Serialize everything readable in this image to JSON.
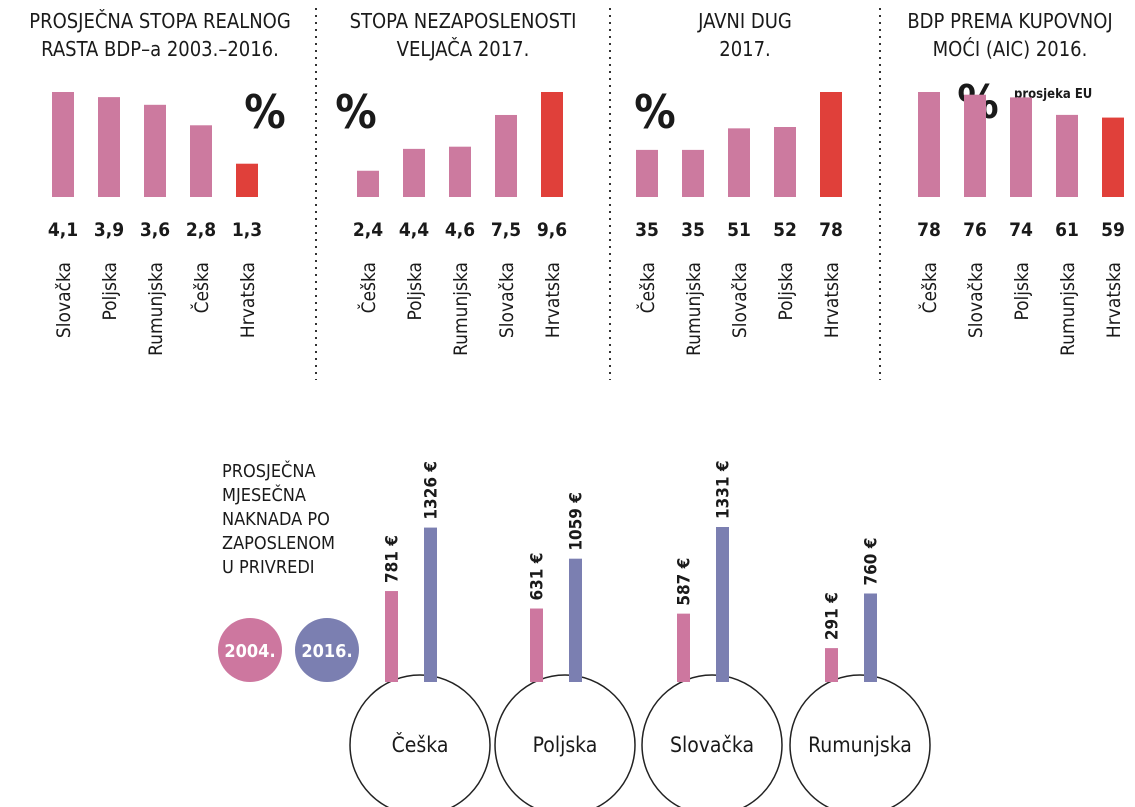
{
  "chart_data": [
    {
      "type": "bar",
      "title": [
        "PROSJEČNA STOPA REALNOG",
        "RASTA BDP–a 2003.–2016."
      ],
      "unit": "%",
      "categories": [
        "Slovačka",
        "Poljska",
        "Rumunjska",
        "Češka",
        "Hrvatska"
      ],
      "values": [
        4.1,
        3.9,
        3.6,
        2.8,
        1.3
      ],
      "value_labels": [
        "4,1",
        "3,9",
        "3,6",
        "2,8",
        "1,3"
      ],
      "colors": [
        "#cc7a9f",
        "#cc7a9f",
        "#cc7a9f",
        "#cc7a9f",
        "#e0403a"
      ]
    },
    {
      "type": "bar",
      "title": [
        "STOPA NEZAPOSLENOSTI",
        "VELJAČA 2017."
      ],
      "unit": "%",
      "categories": [
        "Češka",
        "Poljska",
        "Rumunjska",
        "Slovačka",
        "Hrvatska"
      ],
      "values": [
        2.4,
        4.4,
        4.6,
        7.5,
        9.6
      ],
      "value_labels": [
        "2,4",
        "4,4",
        "4,6",
        "7,5",
        "9,6"
      ],
      "colors": [
        "#cc7a9f",
        "#cc7a9f",
        "#cc7a9f",
        "#cc7a9f",
        "#e0403a"
      ]
    },
    {
      "type": "bar",
      "title": [
        "JAVNI DUG",
        "2017."
      ],
      "unit": "%",
      "categories": [
        "Češka",
        "Rumunjska",
        "Slovačka",
        "Poljska",
        "Hrvatska"
      ],
      "values": [
        35,
        35,
        51,
        52,
        78
      ],
      "colors": [
        "#cc7a9f",
        "#cc7a9f",
        "#cc7a9f",
        "#cc7a9f",
        "#e0403a"
      ]
    },
    {
      "type": "bar",
      "title": [
        "BDP PREMA KUPOVNOJ",
        "MOĆI (AIC) 2016."
      ],
      "unit": "%",
      "note": "prosjeka EU",
      "categories": [
        "Češka",
        "Slovačka",
        "Poljska",
        "Rumunjska",
        "Hrvatska"
      ],
      "values": [
        78,
        76,
        74,
        61,
        59
      ],
      "colors": [
        "#cc7a9f",
        "#cc7a9f",
        "#cc7a9f",
        "#cc7a9f",
        "#e0403a"
      ]
    },
    {
      "type": "grouped_bar",
      "title": [
        "PROSJEČNA",
        "MJESEČNA",
        "NAKNADA PO",
        "ZAPOSLENOM",
        "U PRIVREDI"
      ],
      "categories": [
        "Češka",
        "Poljska",
        "Slovačka",
        "Rumunjska"
      ],
      "series": [
        {
          "name": "2004.",
          "color": "#cd779f",
          "values": [
            781,
            631,
            587,
            291
          ],
          "value_labels": [
            "781 €",
            "631 €",
            "587 €",
            "291 €"
          ]
        },
        {
          "name": "2016.",
          "color": "#7b7fb1",
          "values": [
            1326,
            1059,
            1331,
            760
          ],
          "value_labels": [
            "1326 €",
            "1059 €",
            "1331 €",
            "760 €"
          ]
        }
      ]
    }
  ]
}
